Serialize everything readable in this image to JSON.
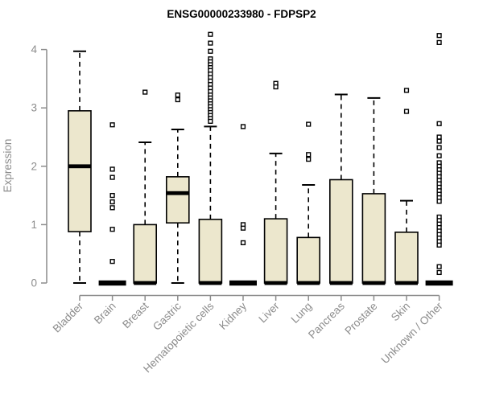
{
  "title": "ENSG00000233980 - FDPSP2",
  "chart_data": {
    "type": "boxplot",
    "title": "ENSG00000233980 - FDPSP2",
    "xlabel": "",
    "ylabel": "Expression",
    "ylim": [
      0,
      4.35
    ],
    "yticks": [
      0,
      1,
      2,
      3,
      4
    ],
    "grid": false,
    "legend": "none",
    "box_fill_color": "#ece7cd",
    "box_border_color": "#000000",
    "median_color": "#000000",
    "axis_color": "#8c8c8c",
    "tick_label_color": "#8c8c8c",
    "title_color": "#000000",
    "categories": [
      "Bladder",
      "Brain",
      "Breast",
      "Gastric",
      "Hematopoietic cells",
      "Kidney",
      "Liver",
      "Lung",
      "Pancreas",
      "Prostate",
      "Skin",
      "Unknown / Other"
    ],
    "boxes": [
      {
        "category": "Bladder",
        "low": 0,
        "q1": 0.88,
        "median": 2.0,
        "q3": 2.95,
        "high": 3.97,
        "outliers": []
      },
      {
        "category": "Brain",
        "low": 0,
        "q1": 0,
        "median": 0,
        "q3": 0,
        "high": 0,
        "outliers": [
          2.71,
          1.95,
          1.81,
          1.5,
          1.39,
          1.29,
          0.92,
          0.37
        ]
      },
      {
        "category": "Breast",
        "low": 0,
        "q1": 0,
        "median": 0,
        "q3": 1.0,
        "high": 2.41,
        "outliers": [
          3.27
        ]
      },
      {
        "category": "Gastric",
        "low": 0,
        "q1": 1.03,
        "median": 1.54,
        "q3": 1.82,
        "high": 2.63,
        "outliers": [
          3.22,
          3.14
        ]
      },
      {
        "category": "Hematopoietic cells",
        "low": 0,
        "q1": 0,
        "median": 0,
        "q3": 1.09,
        "high": 2.68,
        "outliers": [
          4.26,
          4.11,
          3.97,
          3.84,
          3.79,
          3.74,
          3.69,
          3.64,
          3.58,
          3.52,
          3.46,
          3.4,
          3.34,
          3.28,
          3.22,
          3.17,
          3.12,
          3.07,
          3.02,
          2.97,
          2.92,
          2.87,
          2.82,
          2.77
        ]
      },
      {
        "category": "Kidney",
        "low": 0,
        "q1": 0,
        "median": 0,
        "q3": 0,
        "high": 0,
        "outliers": [
          2.68,
          1.0,
          0.94,
          0.69
        ]
      },
      {
        "category": "Liver",
        "low": 0,
        "q1": 0,
        "median": 0,
        "q3": 1.1,
        "high": 2.22,
        "outliers": [
          3.42,
          3.36
        ]
      },
      {
        "category": "Lung",
        "low": 0,
        "q1": 0,
        "median": 0,
        "q3": 0.78,
        "high": 1.68,
        "outliers": [
          2.72,
          2.2,
          2.12
        ]
      },
      {
        "category": "Pancreas",
        "low": 0,
        "q1": 0,
        "median": 0,
        "q3": 1.77,
        "high": 3.23,
        "outliers": []
      },
      {
        "category": "Prostate",
        "low": 0,
        "q1": 0,
        "median": 0,
        "q3": 1.53,
        "high": 3.17,
        "outliers": []
      },
      {
        "category": "Skin",
        "low": 0,
        "q1": 0,
        "median": 0,
        "q3": 0.87,
        "high": 1.41,
        "outliers": [
          3.3,
          2.94
        ]
      },
      {
        "category": "Unknown / Other",
        "low": 0,
        "q1": 0,
        "median": 0,
        "q3": 0,
        "high": 0,
        "outliers": [
          4.24,
          4.12,
          2.73,
          2.5,
          2.43,
          2.32,
          2.18,
          2.06,
          2.0,
          1.94,
          1.88,
          1.82,
          1.76,
          1.7,
          1.64,
          1.58,
          1.52,
          1.46,
          1.4,
          1.13,
          1.07,
          1.01,
          0.95,
          0.89,
          0.83,
          0.77,
          0.71,
          0.65,
          0.28,
          0.18
        ]
      }
    ]
  }
}
